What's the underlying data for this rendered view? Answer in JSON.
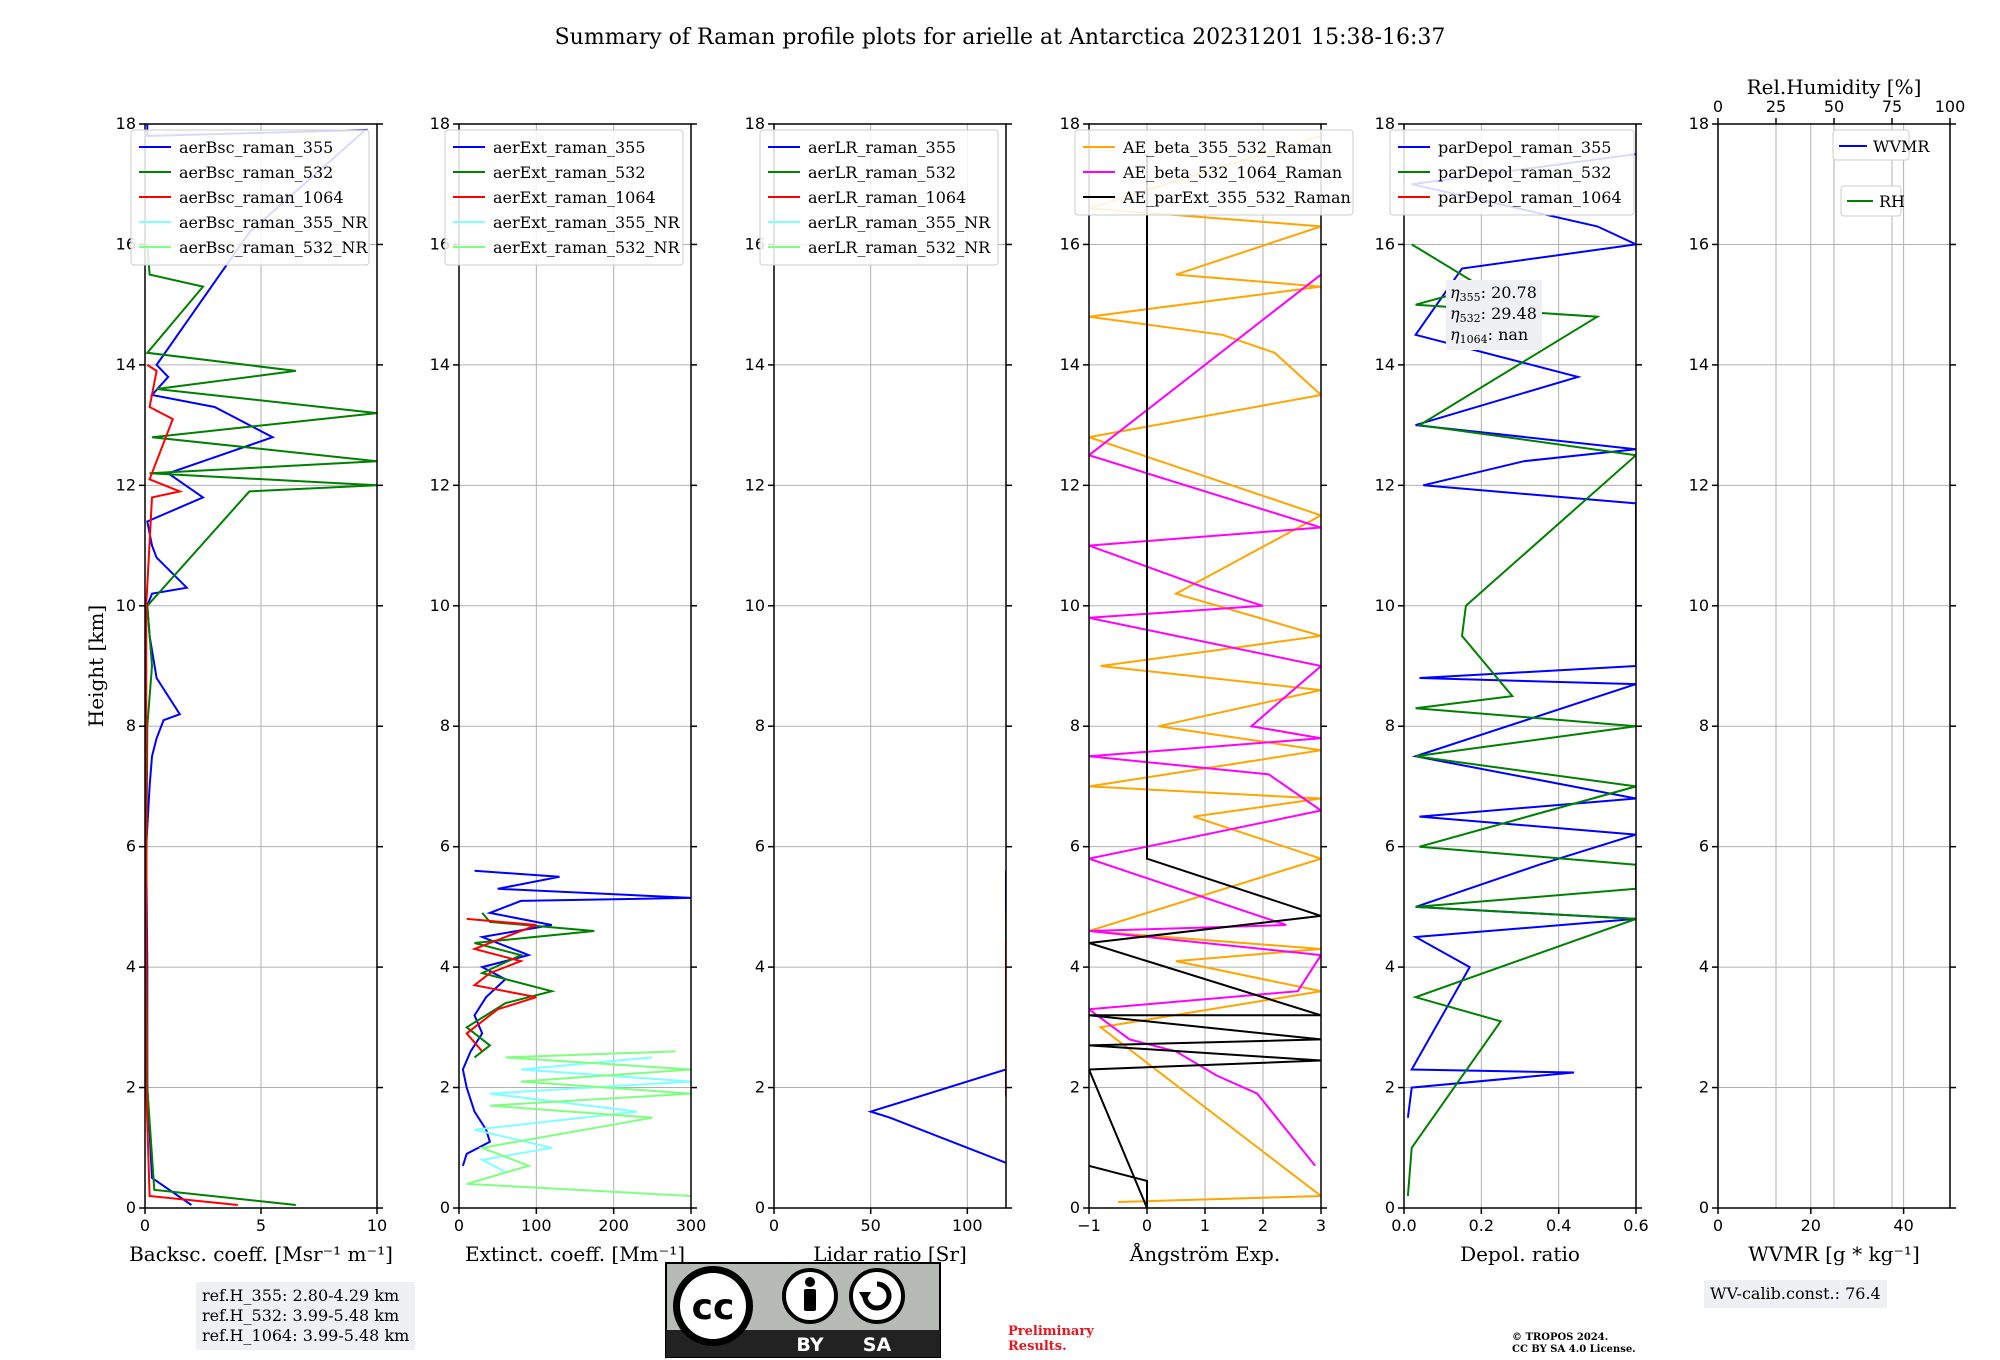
{
  "chart_data": {
    "type": "line",
    "title": "Summary of Raman profile plots for arielle at Antarctica 20231201 15:38-16:37",
    "ylabel": "Height [km]",
    "ylim": [
      0,
      18
    ],
    "yticks": [
      "0",
      "2",
      "4",
      "6",
      "8",
      "10",
      "12",
      "14",
      "16",
      "18"
    ],
    "panels": [
      {
        "id": "backscatter",
        "xlabel": "Backsc. coeff. [Msr⁻¹ m⁻¹]",
        "xlim": [
          0,
          10
        ],
        "xticks": [
          "0",
          "5",
          "10"
        ],
        "legend": [
          {
            "name": "aerBsc_raman_355",
            "color": "#0000ff"
          },
          {
            "name": "aerBsc_raman_532",
            "color": "#008000"
          },
          {
            "name": "aerBsc_raman_1064",
            "color": "#ff0000"
          },
          {
            "name": "aerBsc_raman_355_NR",
            "color": "#7fffff"
          },
          {
            "name": "aerBsc_raman_532_NR",
            "color": "#7fff7f"
          }
        ],
        "series": [
          {
            "name": "aerBsc_raman_355",
            "color": "#0000ff",
            "x": [
              2.0,
              0.3,
              0.1,
              0.1,
              0.05,
              0.2,
              0.3,
              0.5,
              0.8,
              1.5,
              0.5,
              0.2,
              0.1,
              0.3,
              1.8,
              0.5,
              0.3,
              0.1,
              2.5,
              1.0,
              5.5,
              3.0,
              0.3,
              1.0,
              0.5,
              4.5,
              9.5,
              0.1,
              0.1
            ],
            "y": [
              0.05,
              0.5,
              2.0,
              4.0,
              6.0,
              7.0,
              7.5,
              7.8,
              8.1,
              8.2,
              8.8,
              9.5,
              10.0,
              10.2,
              10.3,
              10.8,
              11.0,
              11.4,
              11.8,
              12.2,
              12.8,
              13.3,
              13.5,
              13.8,
              14.0,
              16.2,
              17.9,
              17.8,
              18.0
            ]
          },
          {
            "name": "aerBsc_raman_532",
            "color": "#008000",
            "x": [
              6.5,
              0.4,
              0.1,
              0.05,
              0.1,
              0.3,
              0.1,
              4.5,
              10,
              0.2,
              10,
              0.3,
              10,
              0.5,
              6.5,
              0.1,
              2.5,
              0.2,
              0.1
            ],
            "y": [
              0.05,
              0.3,
              2.0,
              5.0,
              8.0,
              9.0,
              10.0,
              11.9,
              12.0,
              12.2,
              12.4,
              12.8,
              13.2,
              13.6,
              13.9,
              14.2,
              15.3,
              15.5,
              16.0
            ]
          },
          {
            "name": "aerBsc_raman_1064",
            "color": "#ff0000",
            "x": [
              4.0,
              0.2,
              0.05,
              0.05,
              0.3,
              1.5,
              0.2,
              1.2,
              0.2,
              0.5,
              0.1
            ],
            "y": [
              0.05,
              0.2,
              2.0,
              10.0,
              11.8,
              11.9,
              12.1,
              13.1,
              13.3,
              13.9,
              14.0
            ]
          }
        ]
      },
      {
        "id": "extinction",
        "xlabel": "Extinct. coeff. [Mm⁻¹]",
        "xlim": [
          0,
          300
        ],
        "xticks": [
          "0",
          "100",
          "200",
          "300"
        ],
        "legend": [
          {
            "name": "aerExt_raman_355",
            "color": "#0000ff"
          },
          {
            "name": "aerExt_raman_532",
            "color": "#008000"
          },
          {
            "name": "aerExt_raman_1064",
            "color": "#ff0000"
          },
          {
            "name": "aerExt_raman_355_NR",
            "color": "#7fffff"
          },
          {
            "name": "aerExt_raman_532_NR",
            "color": "#7fff7f"
          }
        ],
        "series": [
          {
            "name": "aerExt_raman_355",
            "color": "#0000ff",
            "x": [
              5,
              10,
              40,
              35,
              20,
              10,
              5,
              15,
              30,
              20,
              35,
              60,
              30,
              90,
              30,
              120,
              40,
              80,
              300,
              50,
              130,
              20
            ],
            "y": [
              0.7,
              0.9,
              1.1,
              1.3,
              1.6,
              2.0,
              2.3,
              2.6,
              2.9,
              3.2,
              3.5,
              3.8,
              4.0,
              4.2,
              4.5,
              4.7,
              4.9,
              5.1,
              5.15,
              5.3,
              5.5,
              5.6
            ]
          },
          {
            "name": "aerExt_raman_532",
            "color": "#008000",
            "x": [
              20,
              40,
              10,
              60,
              120,
              30,
              80,
              20,
              175,
              40,
              30
            ],
            "y": [
              2.5,
              2.7,
              3.0,
              3.4,
              3.6,
              3.9,
              4.2,
              4.4,
              4.6,
              4.75,
              4.9
            ]
          },
          {
            "name": "aerExt_raman_1064",
            "color": "#ff0000",
            "x": [
              30,
              10,
              50,
              100,
              20,
              40,
              80,
              20,
              60,
              100,
              10
            ],
            "y": [
              2.6,
              2.9,
              3.3,
              3.5,
              3.7,
              3.9,
              4.1,
              4.3,
              4.5,
              4.7,
              4.8
            ]
          },
          {
            "name": "aerExt_raman_355_NR",
            "color": "#7fffff",
            "x": [
              60,
              30,
              120,
              20,
              230,
              40,
              300,
              80,
              250
            ],
            "y": [
              0.6,
              0.8,
              1.0,
              1.3,
              1.6,
              1.9,
              2.1,
              2.3,
              2.5
            ]
          },
          {
            "name": "aerExt_raman_532_NR",
            "color": "#7fff7f",
            "x": [
              300,
              10,
              90,
              30,
              250,
              40,
              300,
              80,
              300,
              60,
              280
            ],
            "y": [
              0.2,
              0.4,
              0.7,
              1.0,
              1.5,
              1.7,
              1.9,
              2.1,
              2.3,
              2.5,
              2.6
            ]
          }
        ]
      },
      {
        "id": "lidar-ratio",
        "xlabel": "Lidar ratio [Sr]",
        "xlim": [
          0,
          120
        ],
        "xticks": [
          "0",
          "50",
          "100"
        ],
        "legend": [
          {
            "name": "aerLR_raman_355",
            "color": "#0000ff"
          },
          {
            "name": "aerLR_raman_532",
            "color": "#008000"
          },
          {
            "name": "aerLR_raman_1064",
            "color": "#ff0000"
          },
          {
            "name": "aerLR_raman_355_NR",
            "color": "#7fffff"
          },
          {
            "name": "aerLR_raman_532_NR",
            "color": "#7fff7f"
          }
        ],
        "series": [
          {
            "name": "aerLR_raman_355",
            "color": "#0000ff",
            "x": [
              120,
              60,
              50,
              120,
              120,
              120,
              120,
              120,
              120,
              120,
              120,
              120,
              120,
              120,
              120
            ],
            "y": [
              0.75,
              1.5,
              1.6,
              2.3,
              2.5,
              2.6,
              3.4,
              3.5,
              3.7,
              3.9,
              4.0,
              4.85,
              4.95,
              5.4,
              5.6
            ]
          },
          {
            "name": "aerLR_raman_532",
            "color": "#008000",
            "x": [
              120,
              120,
              120
            ],
            "y": [
              2.55,
              4.55,
              4.9
            ]
          },
          {
            "name": "aerLR_raman_1064",
            "color": "#ff0000",
            "x": [
              120,
              120,
              120,
              120,
              120,
              120,
              120,
              120
            ],
            "y": [
              1.85,
              1.9,
              2.8,
              3.0,
              3.1,
              3.2,
              4.35,
              4.45
            ]
          }
        ]
      },
      {
        "id": "angstrom",
        "xlabel": "Ångström Exp.",
        "xlim": [
          -1,
          3
        ],
        "xticks": [
          "−1",
          "0",
          "1",
          "2",
          "3"
        ],
        "legend": [
          {
            "name": "AE_beta_355_532_Raman",
            "color": "#ffa500"
          },
          {
            "name": "AE_beta_532_1064_Raman",
            "color": "#ff00ff"
          },
          {
            "name": "AE_parExt_355_532_Raman",
            "color": "#000000"
          }
        ],
        "series": [
          {
            "name": "AE_beta_355_532_Raman",
            "color": "#ffa500",
            "x": [
              -0.5,
              3,
              -0.8,
              3,
              0.5,
              3,
              -1,
              3,
              0.8,
              3,
              -1,
              3,
              0.2,
              3,
              -0.8,
              3,
              0.5,
              3,
              -1,
              3,
              2.2,
              1.3,
              -1,
              3,
              0.5,
              3,
              -1,
              3
            ],
            "y": [
              0.1,
              0.2,
              3.0,
              3.6,
              4.1,
              4.3,
              4.6,
              5.8,
              6.5,
              6.8,
              7.0,
              7.6,
              8.0,
              8.6,
              9.0,
              9.5,
              10.2,
              11.5,
              12.8,
              13.5,
              14.2,
              14.5,
              14.8,
              15.3,
              15.5,
              16.3,
              16.6,
              17.8
            ]
          },
          {
            "name": "AE_beta_532_1064_Raman",
            "color": "#ff00ff",
            "x": [
              2.9,
              1.9,
              1.2,
              0.5,
              -0.3,
              -1,
              2.6,
              3,
              -1,
              2.4,
              -1,
              3,
              2.1,
              -1,
              3,
              1.8,
              3,
              -1,
              2.0,
              1.0,
              -1,
              3,
              -1,
              3
            ],
            "y": [
              0.7,
              1.9,
              2.2,
              2.6,
              2.8,
              3.3,
              3.6,
              4.2,
              4.6,
              4.7,
              5.8,
              6.6,
              7.2,
              7.5,
              7.8,
              8.0,
              9.0,
              9.8,
              10.0,
              10.3,
              11.0,
              11.3,
              12.5,
              15.5
            ]
          },
          {
            "name": "AE_parExt_355_532_Raman",
            "color": "#000000",
            "x": [
              -1,
              0.0,
              0.0,
              -1,
              3,
              -1,
              3,
              -1,
              3,
              -1,
              3,
              0.0,
              0.0
            ],
            "y": [
              0.7,
              0.45,
              0.0,
              2.3,
              2.45,
              2.7,
              2.8,
              3.2,
              3.2,
              4.4,
              4.85,
              5.8,
              17.5
            ]
          }
        ]
      },
      {
        "id": "depol",
        "xlabel": "Depol. ratio",
        "xlim": [
          0.0,
          0.6
        ],
        "xticks": [
          "0.0",
          "0.2",
          "0.4",
          "0.6"
        ],
        "legend": [
          {
            "name": "parDepol_raman_355",
            "color": "#0000ff"
          },
          {
            "name": "parDepol_raman_532",
            "color": "#008000"
          },
          {
            "name": "parDepol_raman_1064",
            "color": "#ff0000"
          }
        ],
        "series": [
          {
            "name": "parDepol_raman_355",
            "color": "#0000ff",
            "x": [
              0.01,
              0.02,
              0.44,
              0.02,
              0.17,
              0.03,
              0.6,
              0.03,
              0.35,
              0.6,
              0.04,
              0.6,
              0.03,
              0.6,
              0.04,
              0.6,
              0.6,
              0.05,
              0.31,
              0.6,
              0.03,
              0.45,
              0.03,
              0.15,
              0.6,
              0.5,
              0.02,
              0.6
            ],
            "y": [
              1.5,
              2.0,
              2.25,
              2.3,
              4.0,
              4.5,
              4.8,
              5.0,
              5.7,
              6.2,
              6.5,
              6.8,
              7.5,
              8.7,
              8.8,
              9.0,
              11.7,
              12.0,
              12.4,
              12.6,
              13.0,
              13.8,
              14.5,
              15.6,
              16.0,
              16.3,
              17.0,
              17.5
            ]
          },
          {
            "name": "parDepol_raman_532",
            "color": "#008000",
            "x": [
              0.01,
              0.02,
              0.25,
              0.03,
              0.6,
              0.03,
              0.6,
              0.6,
              0.04,
              0.6,
              0.03,
              0.6,
              0.03,
              0.28,
              0.15,
              0.16,
              0.6,
              0.04,
              0.5,
              0.03,
              0.2,
              0.02
            ],
            "y": [
              0.2,
              1.0,
              3.1,
              3.5,
              4.8,
              5.0,
              5.3,
              5.7,
              6.0,
              7.0,
              7.5,
              8.0,
              8.3,
              8.5,
              9.5,
              10.0,
              12.5,
              13.0,
              14.8,
              15.0,
              15.3,
              16.0
            ]
          }
        ],
        "annotations": [
          {
            "label": "η",
            "sub": "355",
            "value": ": 20.78"
          },
          {
            "label": "η",
            "sub": "532",
            "value": ": 29.48"
          },
          {
            "label": "η",
            "sub": "1064",
            "value": ": nan"
          }
        ]
      },
      {
        "id": "wvmr",
        "xlabel": "WVMR [g * kg⁻¹]",
        "xlim": [
          0,
          50
        ],
        "xticks": [
          "0",
          "20",
          "40"
        ],
        "top_label": "Rel.Humidity [%]",
        "top_ticks": [
          "0",
          "25",
          "50",
          "75",
          "100"
        ],
        "legend": [
          {
            "name": "WVMR",
            "color": "#0000ff"
          },
          {
            "name": "RH",
            "color": "#008000"
          }
        ],
        "series": []
      }
    ]
  },
  "ref_heights": [
    "ref.H_355: 2.80-4.29 km",
    "ref.H_532: 3.99-5.48 km",
    "ref.H_1064: 3.99-5.48 km"
  ],
  "wv_calib": "WV-calib.const.: 76.4",
  "license_badge": {
    "cc": "cc",
    "by": "BY",
    "sa": "SA"
  },
  "preliminary": [
    "Preliminary",
    "Results."
  ],
  "copyright": [
    "© TROPOS 2024.",
    "CC BY SA 4.0 License."
  ]
}
